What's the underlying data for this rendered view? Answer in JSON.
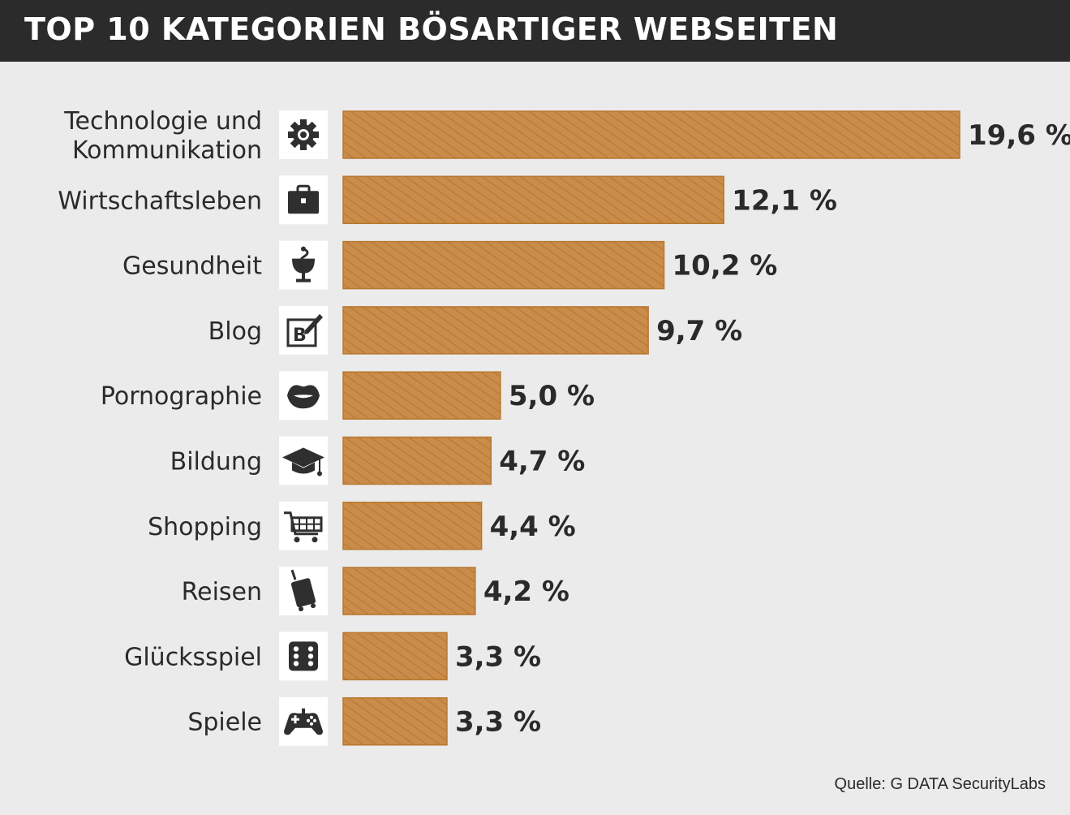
{
  "title": "TOP 10 KATEGORIEN BÖSARTIGER WEBSEITEN",
  "source": "Quelle: G DATA SecurityLabs",
  "colors": {
    "bar": "#c98c4a",
    "bar_dark": "#b8772f",
    "header_bg": "#2b2b2b",
    "background": "#ebebeb",
    "icon": "#2f2f2f"
  },
  "chart_data": {
    "type": "bar",
    "orientation": "horizontal",
    "title": "TOP 10 KATEGORIEN BÖSARTIGER WEBSEITEN",
    "xlabel": "",
    "ylabel": "",
    "xlim": [
      0,
      19.6
    ],
    "unit": "%",
    "categories": [
      [
        "Technologie und",
        "Kommunikation"
      ],
      [
        "Wirtschaftsleben"
      ],
      [
        "Gesundheit"
      ],
      [
        "Blog"
      ],
      [
        "Pornographie"
      ],
      [
        "Bildung"
      ],
      [
        "Shopping"
      ],
      [
        "Reisen"
      ],
      [
        "Glücksspiel"
      ],
      [
        "Spiele"
      ]
    ],
    "values": [
      19.6,
      12.1,
      10.2,
      9.7,
      5.0,
      4.7,
      4.4,
      4.2,
      3.3,
      3.3
    ],
    "value_labels": [
      "19,6 %",
      "12,1 %",
      "10,2 %",
      "9,7 %",
      "5,0 %",
      "4,7 %",
      "4,4 %",
      "4,2 %",
      "3,3 %",
      "3,3 %"
    ],
    "icons": [
      "gear-icon",
      "briefcase-icon",
      "health-icon",
      "blog-icon",
      "lips-icon",
      "graduation-cap-icon",
      "shopping-cart-icon",
      "suitcase-icon",
      "dice-icon",
      "gamepad-icon"
    ]
  }
}
